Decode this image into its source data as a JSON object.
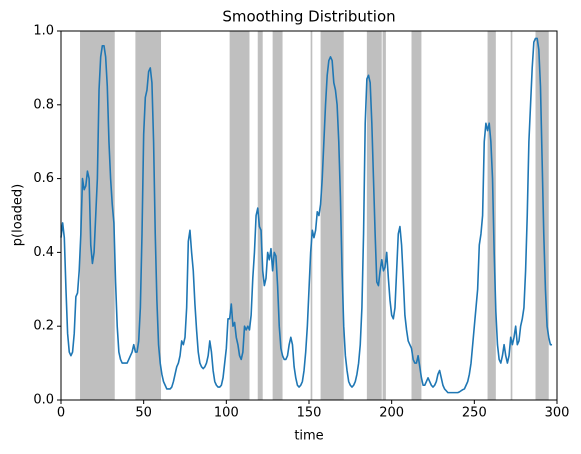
{
  "chart_data": {
    "type": "line",
    "title": "Smoothing Distribution",
    "xlabel": "time",
    "ylabel": "p(loaded)",
    "xlim": [
      0,
      300
    ],
    "ylim": [
      0,
      1.0
    ],
    "xticks": [
      0,
      50,
      100,
      150,
      200,
      250,
      300
    ],
    "yticks": [
      {
        "value": 0,
        "label": "0.0"
      },
      {
        "value": 0.2,
        "label": "0.2"
      },
      {
        "value": 0.4,
        "label": "0.4"
      },
      {
        "value": 0.6,
        "label": "0.6"
      },
      {
        "value": 0.8,
        "label": "0.8"
      },
      {
        "value": 1.0,
        "label": "1.0"
      }
    ],
    "span_color": "#bfbfbf",
    "spans": [
      [
        11.5,
        32.5
      ],
      [
        45,
        60.5
      ],
      [
        102,
        114
      ],
      [
        119,
        122
      ],
      [
        128,
        134
      ],
      [
        151,
        152
      ],
      [
        157,
        171
      ],
      [
        185,
        194
      ],
      [
        194.5,
        196.5
      ],
      [
        212,
        218
      ],
      [
        258,
        263
      ],
      [
        272,
        273
      ],
      [
        287,
        295
      ]
    ],
    "series": [
      {
        "color": "#1f77b4",
        "x": [
          0,
          1,
          2,
          3,
          4,
          5,
          6,
          7,
          8,
          9,
          10,
          11,
          12,
          13,
          14,
          15,
          16,
          17,
          18,
          19,
          20,
          21,
          22,
          23,
          24,
          25,
          26,
          27,
          28,
          29,
          30,
          31,
          32,
          33,
          34,
          35,
          36,
          37,
          38,
          39,
          40,
          41,
          42,
          43,
          44,
          45,
          46,
          47,
          48,
          49,
          50,
          51,
          52,
          53,
          54,
          55,
          56,
          57,
          58,
          59,
          60,
          61,
          62,
          63,
          64,
          65,
          66,
          67,
          68,
          69,
          70,
          71,
          72,
          73,
          74,
          75,
          76,
          77,
          78,
          79,
          80,
          81,
          82,
          83,
          84,
          85,
          86,
          87,
          88,
          89,
          90,
          91,
          92,
          93,
          94,
          95,
          96,
          97,
          98,
          99,
          100,
          101,
          102,
          103,
          104,
          105,
          106,
          107,
          108,
          109,
          110,
          111,
          112,
          113,
          114,
          115,
          116,
          117,
          118,
          119,
          120,
          121,
          122,
          123,
          124,
          125,
          126,
          127,
          128,
          129,
          130,
          131,
          132,
          133,
          134,
          135,
          136,
          137,
          138,
          139,
          140,
          141,
          142,
          143,
          144,
          145,
          146,
          147,
          148,
          149,
          150,
          151,
          152,
          153,
          154,
          155,
          156,
          157,
          158,
          159,
          160,
          161,
          162,
          163,
          164,
          165,
          166,
          167,
          168,
          169,
          170,
          171,
          172,
          173,
          174,
          175,
          176,
          177,
          178,
          179,
          180,
          181,
          182,
          183,
          184,
          185,
          186,
          187,
          188,
          189,
          190,
          191,
          192,
          193,
          194,
          195,
          196,
          197,
          198,
          199,
          200,
          201,
          202,
          203,
          204,
          205,
          206,
          207,
          208,
          209,
          210,
          211,
          212,
          213,
          214,
          215,
          216,
          217,
          218,
          219,
          220,
          221,
          222,
          223,
          224,
          225,
          226,
          227,
          228,
          229,
          230,
          231,
          232,
          233,
          234,
          235,
          236,
          237,
          238,
          239,
          240,
          241,
          242,
          243,
          244,
          245,
          246,
          247,
          248,
          249,
          250,
          251,
          252,
          253,
          254,
          255,
          256,
          257,
          258,
          259,
          260,
          261,
          262,
          263,
          264,
          265,
          266,
          267,
          268,
          269,
          270,
          271,
          272,
          273,
          274,
          275,
          276,
          277,
          278,
          279,
          280,
          281,
          282,
          283,
          284,
          285,
          286,
          287,
          288,
          289,
          290,
          291,
          292,
          293,
          294,
          295,
          296,
          297
        ],
        "values": [
          0.44,
          0.48,
          0.44,
          0.3,
          0.18,
          0.13,
          0.12,
          0.13,
          0.18,
          0.28,
          0.29,
          0.35,
          0.45,
          0.6,
          0.57,
          0.58,
          0.62,
          0.6,
          0.42,
          0.37,
          0.4,
          0.5,
          0.6,
          0.84,
          0.93,
          0.96,
          0.96,
          0.93,
          0.85,
          0.7,
          0.6,
          0.53,
          0.48,
          0.32,
          0.2,
          0.13,
          0.11,
          0.1,
          0.1,
          0.1,
          0.1,
          0.11,
          0.12,
          0.13,
          0.15,
          0.13,
          0.13,
          0.16,
          0.25,
          0.45,
          0.72,
          0.82,
          0.84,
          0.89,
          0.9,
          0.86,
          0.7,
          0.45,
          0.27,
          0.15,
          0.1,
          0.07,
          0.05,
          0.04,
          0.03,
          0.03,
          0.03,
          0.035,
          0.05,
          0.07,
          0.09,
          0.1,
          0.12,
          0.16,
          0.15,
          0.17,
          0.25,
          0.43,
          0.46,
          0.4,
          0.35,
          0.26,
          0.19,
          0.13,
          0.1,
          0.09,
          0.085,
          0.09,
          0.1,
          0.12,
          0.16,
          0.13,
          0.08,
          0.05,
          0.04,
          0.035,
          0.035,
          0.04,
          0.06,
          0.1,
          0.14,
          0.22,
          0.22,
          0.26,
          0.2,
          0.21,
          0.17,
          0.15,
          0.12,
          0.11,
          0.13,
          0.2,
          0.19,
          0.2,
          0.19,
          0.23,
          0.33,
          0.4,
          0.5,
          0.52,
          0.47,
          0.46,
          0.35,
          0.31,
          0.33,
          0.4,
          0.38,
          0.41,
          0.35,
          0.4,
          0.39,
          0.31,
          0.2,
          0.14,
          0.12,
          0.11,
          0.11,
          0.12,
          0.15,
          0.17,
          0.15,
          0.09,
          0.06,
          0.04,
          0.035,
          0.04,
          0.05,
          0.08,
          0.13,
          0.2,
          0.3,
          0.4,
          0.46,
          0.44,
          0.46,
          0.51,
          0.5,
          0.53,
          0.6,
          0.7,
          0.8,
          0.88,
          0.92,
          0.93,
          0.92,
          0.86,
          0.84,
          0.8,
          0.7,
          0.55,
          0.35,
          0.2,
          0.12,
          0.08,
          0.05,
          0.04,
          0.035,
          0.04,
          0.05,
          0.07,
          0.1,
          0.15,
          0.25,
          0.45,
          0.75,
          0.87,
          0.88,
          0.86,
          0.75,
          0.6,
          0.45,
          0.32,
          0.31,
          0.35,
          0.38,
          0.35,
          0.36,
          0.4,
          0.33,
          0.27,
          0.23,
          0.22,
          0.25,
          0.35,
          0.45,
          0.47,
          0.42,
          0.33,
          0.23,
          0.19,
          0.16,
          0.15,
          0.14,
          0.11,
          0.1,
          0.1,
          0.12,
          0.09,
          0.06,
          0.04,
          0.04,
          0.05,
          0.06,
          0.05,
          0.04,
          0.035,
          0.04,
          0.05,
          0.07,
          0.08,
          0.06,
          0.04,
          0.03,
          0.025,
          0.02,
          0.02,
          0.02,
          0.02,
          0.02,
          0.02,
          0.02,
          0.022,
          0.025,
          0.028,
          0.03,
          0.04,
          0.05,
          0.07,
          0.1,
          0.15,
          0.2,
          0.25,
          0.3,
          0.42,
          0.45,
          0.5,
          0.7,
          0.75,
          0.73,
          0.75,
          0.7,
          0.6,
          0.4,
          0.24,
          0.15,
          0.11,
          0.1,
          0.12,
          0.15,
          0.12,
          0.1,
          0.12,
          0.17,
          0.15,
          0.17,
          0.2,
          0.15,
          0.16,
          0.2,
          0.22,
          0.25,
          0.35,
          0.5,
          0.7,
          0.8,
          0.9,
          0.97,
          0.98,
          0.98,
          0.95,
          0.85,
          0.65,
          0.45,
          0.3,
          0.2,
          0.17,
          0.15,
          0.15
        ]
      }
    ]
  }
}
